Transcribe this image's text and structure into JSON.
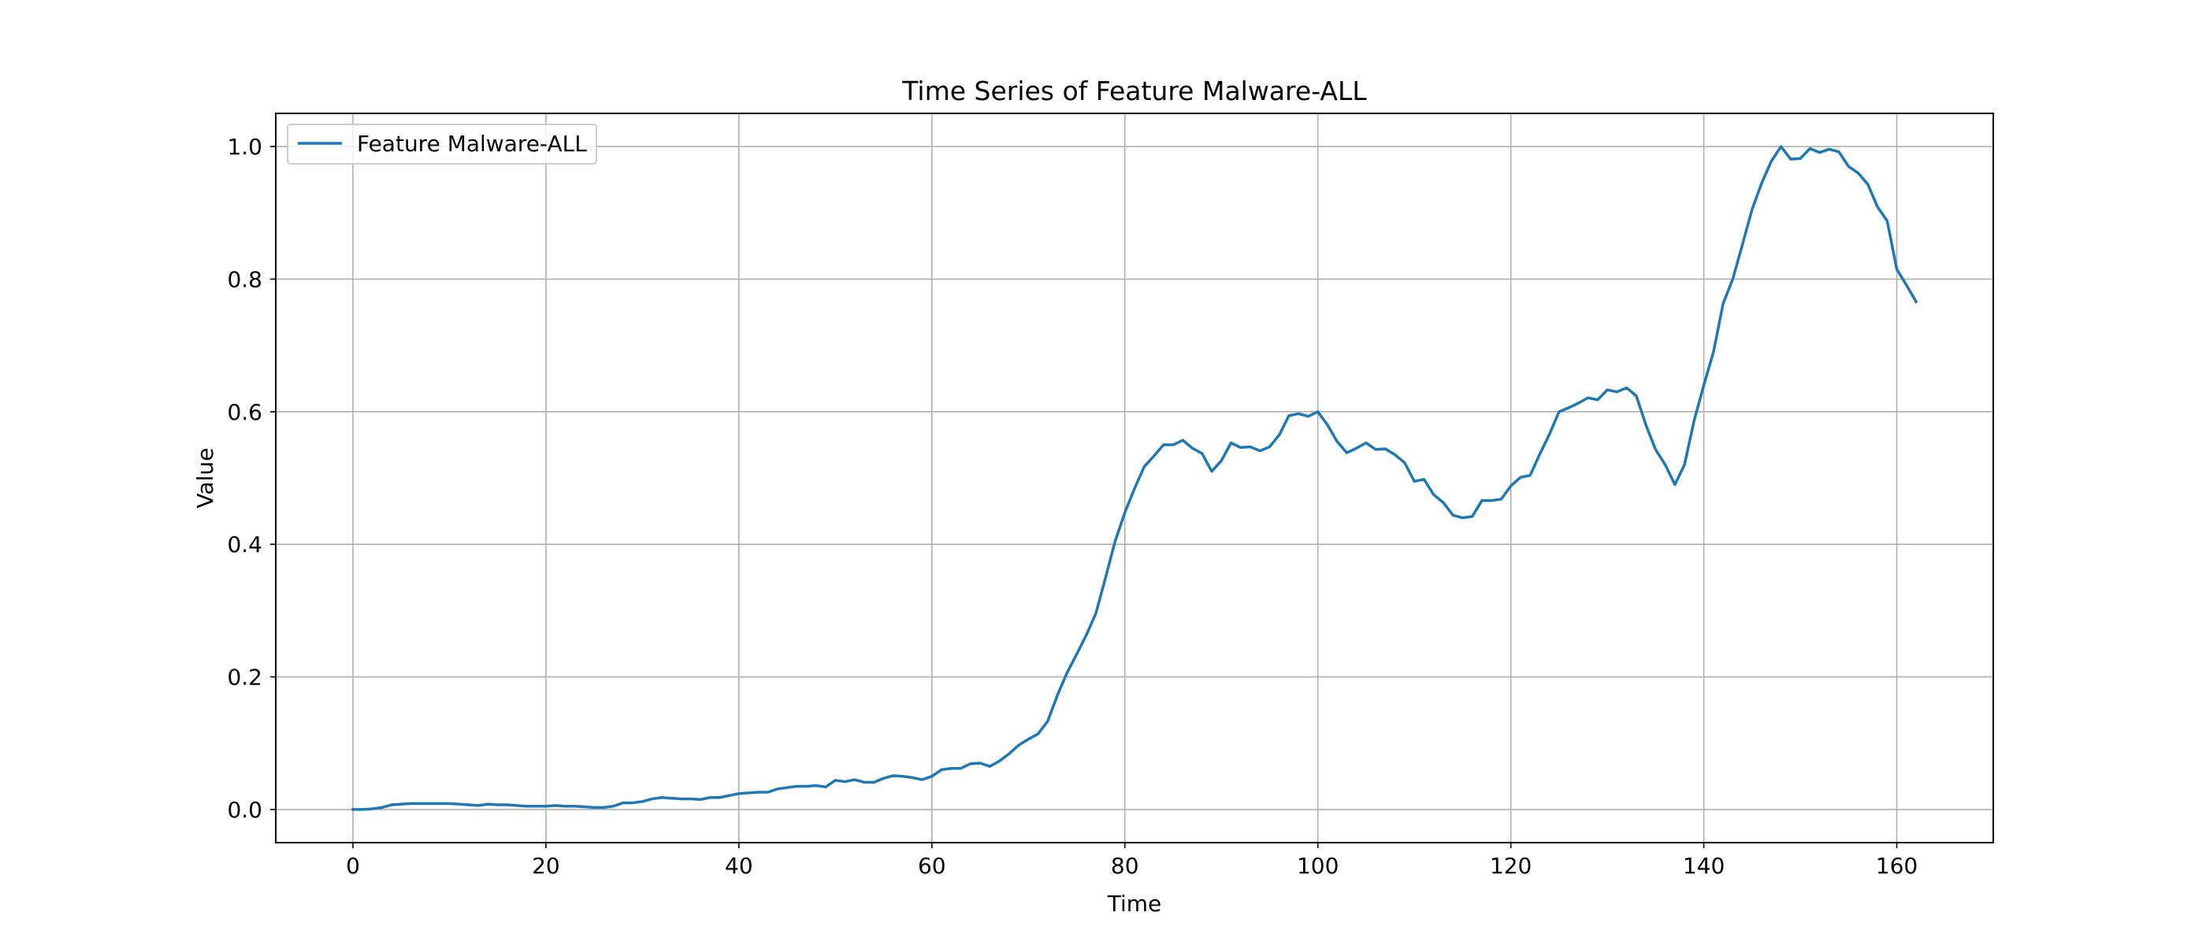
{
  "chart_data": {
    "type": "line",
    "title": "Time Series of Feature Malware-ALL",
    "xlabel": "Time",
    "ylabel": "Value",
    "xlim": [
      -8,
      170
    ],
    "ylim": [
      -0.05,
      1.05
    ],
    "xticks": [
      0,
      20,
      40,
      60,
      80,
      100,
      120,
      140,
      160
    ],
    "xtick_labels": [
      "0",
      "20",
      "40",
      "60",
      "80",
      "100",
      "120",
      "140",
      "160"
    ],
    "yticks": [
      0.0,
      0.2,
      0.4,
      0.6,
      0.8,
      1.0
    ],
    "ytick_labels": [
      "0.0",
      "0.2",
      "0.4",
      "0.6",
      "0.8",
      "1.0"
    ],
    "grid": true,
    "legend_position": "upper-left",
    "series": [
      {
        "name": "Feature Malware-ALL",
        "color": "#1f77b4",
        "x_start": 0,
        "x_step": 1,
        "values": [
          0.0,
          0.0,
          0.001,
          0.003,
          0.007,
          0.008,
          0.009,
          0.009,
          0.009,
          0.009,
          0.009,
          0.008,
          0.007,
          0.006,
          0.008,
          0.007,
          0.007,
          0.006,
          0.005,
          0.005,
          0.005,
          0.006,
          0.005,
          0.005,
          0.004,
          0.003,
          0.003,
          0.005,
          0.01,
          0.01,
          0.012,
          0.016,
          0.018,
          0.017,
          0.016,
          0.016,
          0.015,
          0.018,
          0.018,
          0.021,
          0.024,
          0.025,
          0.026,
          0.026,
          0.031,
          0.033,
          0.035,
          0.035,
          0.036,
          0.034,
          0.044,
          0.042,
          0.045,
          0.041,
          0.041,
          0.047,
          0.051,
          0.05,
          0.048,
          0.045,
          0.05,
          0.06,
          0.062,
          0.062,
          0.069,
          0.07,
          0.065,
          0.073,
          0.084,
          0.097,
          0.106,
          0.114,
          0.133,
          0.172,
          0.206,
          0.234,
          0.263,
          0.296,
          0.35,
          0.405,
          0.448,
          0.484,
          0.517,
          0.533,
          0.55,
          0.55,
          0.557,
          0.545,
          0.537,
          0.51,
          0.526,
          0.553,
          0.546,
          0.547,
          0.541,
          0.547,
          0.565,
          0.594,
          0.597,
          0.593,
          0.6,
          0.58,
          0.555,
          0.538,
          0.545,
          0.553,
          0.543,
          0.544,
          0.535,
          0.523,
          0.495,
          0.498,
          0.475,
          0.463,
          0.444,
          0.44,
          0.442,
          0.466,
          0.466,
          0.468,
          0.488,
          0.501,
          0.504,
          0.536,
          0.566,
          0.6,
          0.606,
          0.613,
          0.621,
          0.618,
          0.633,
          0.63,
          0.636,
          0.624,
          0.58,
          0.543,
          0.52,
          0.49,
          0.52,
          0.587,
          0.64,
          0.69,
          0.763,
          0.8,
          0.852,
          0.905,
          0.945,
          0.978,
          1.0,
          0.981,
          0.982,
          0.997,
          0.991,
          0.996,
          0.992,
          0.97,
          0.96,
          0.943,
          0.909,
          0.888,
          0.815,
          0.791,
          0.766
        ]
      }
    ]
  }
}
